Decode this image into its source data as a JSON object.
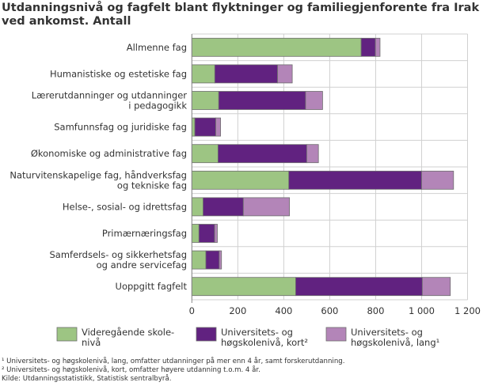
{
  "chart_data": {
    "type": "bar",
    "orientation": "horizontal",
    "stacked": true,
    "title": "Utdanningsnivå og fagfelt blant flyktninger og familiegjenforente fra Irak ved ankomst. Antall",
    "categories": [
      "Allmenne fag",
      "Humanistiske og estetiske fag",
      "Lærerutdanninger og utdanninger\ni pedagogikk",
      "Samfunnsfag og juridiske fag",
      "Økonomiske og administrative fag",
      "Naturvitenskapelige fag, håndverksfag\nog tekniske fag",
      "Helse-, sosial- og idrettsfag",
      "Primærnæringsfag",
      "Samferdsels- og sikkerhetsfag\nog andre servicefag",
      "Uoppgitt fagfelt"
    ],
    "series": [
      {
        "name": "Videregående skole-\nnivå",
        "color": "#9dc583",
        "values": [
          737,
          100,
          117,
          13,
          114,
          422,
          49,
          31,
          61,
          452
        ]
      },
      {
        "name": "Universitets- og\nhøgskolenivå, kort²",
        "color": "#612280",
        "values": [
          62,
          273,
          378,
          91,
          386,
          578,
          175,
          68,
          58,
          551
        ]
      },
      {
        "name": "Universitets- og\nhøgskolenivå, lang¹",
        "color": "#b385b8",
        "values": [
          20,
          64,
          74,
          21,
          51,
          139,
          201,
          12,
          10,
          122
        ]
      }
    ],
    "xlim": [
      0,
      1200
    ],
    "xticks": [
      0,
      200,
      400,
      600,
      800,
      1000,
      1200
    ],
    "xtick_labels": [
      "0",
      "200",
      "400",
      "600",
      "800",
      "1 000",
      "1 200"
    ],
    "grid": true,
    "legend": "bottom"
  },
  "footnotes": [
    "¹ Universitets- og høgskolenivå, lang, omfatter utdanninger på mer enn 4 år, samt forskerutdanning.",
    "² Universitets- og høgskolenivå, kort, omfatter høyere utdanning t.o.m. 4 år.",
    "Kilde: Utdanningsstatistikk, Statistisk sentralbyrå."
  ]
}
